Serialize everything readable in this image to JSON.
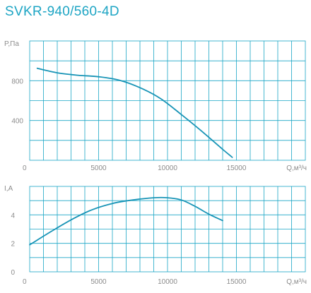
{
  "title": "SVKR-940/560-4D",
  "chart_data": [
    {
      "type": "line",
      "name": "pressure",
      "ylabel": "P,Па",
      "xlabel": "Q,м³/ч",
      "xlim": [
        0,
        20000
      ],
      "ylim": [
        0,
        1200
      ],
      "xticks": [
        0,
        5000,
        10000,
        15000
      ],
      "yticks": [
        400,
        800
      ],
      "grid": true,
      "x": [
        550,
        2000,
        3500,
        5000,
        6500,
        8000,
        9500,
        11000,
        12500,
        14000,
        14700
      ],
      "y": [
        925,
        880,
        855,
        840,
        805,
        730,
        620,
        460,
        290,
        110,
        30
      ]
    },
    {
      "type": "line",
      "name": "current",
      "ylabel": "I,A",
      "xlabel": "Q,м³/ч",
      "xlim": [
        0,
        20000
      ],
      "ylim": [
        0,
        6
      ],
      "xticks": [
        0,
        5000,
        10000,
        15000
      ],
      "yticks": [
        0,
        2,
        4
      ],
      "grid": true,
      "x": [
        0,
        1500,
        3000,
        4500,
        6000,
        7500,
        9000,
        10000,
        11000,
        12000,
        13000,
        14000
      ],
      "y": [
        1.9,
        2.8,
        3.65,
        4.35,
        4.8,
        5.05,
        5.2,
        5.2,
        5.05,
        4.6,
        4.05,
        3.6
      ]
    }
  ]
}
